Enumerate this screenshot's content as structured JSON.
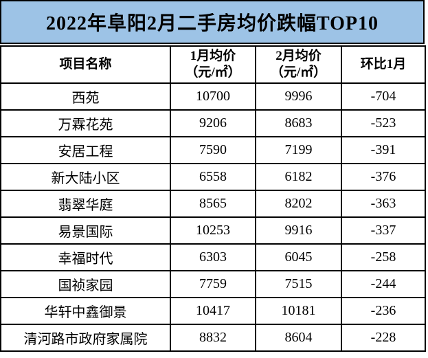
{
  "title": {
    "text": "2022年阜阳2月二手房均价跌幅TOP10"
  },
  "colors": {
    "title_bg": "#9DC3E6",
    "border": "#000000",
    "cell_bg": "#FFFFFF",
    "text": "#000000"
  },
  "chart_data": {
    "type": "table",
    "title": "2022年阜阳2月二手房均价跌幅TOP10",
    "columns": [
      "项目名称",
      "1月均价（元/㎡）",
      "2月均价（元/㎡）",
      "环比1月"
    ],
    "header_lines": [
      {
        "line1": "项目名称",
        "line2": ""
      },
      {
        "line1": "1月均价",
        "line2": "（元/㎡）"
      },
      {
        "line1": "2月均价",
        "line2": "（元/㎡）"
      },
      {
        "line1": "环比1月",
        "line2": ""
      }
    ],
    "rows": [
      {
        "name": "西苑",
        "jan_price": "10700",
        "feb_price": "9996",
        "mom_change": "-704"
      },
      {
        "name": "万霖花苑",
        "jan_price": "9206",
        "feb_price": "8683",
        "mom_change": "-523"
      },
      {
        "name": "安居工程",
        "jan_price": "7590",
        "feb_price": "7199",
        "mom_change": "-391"
      },
      {
        "name": "新大陆小区",
        "jan_price": "6558",
        "feb_price": "6182",
        "mom_change": "-376"
      },
      {
        "name": "翡翠华庭",
        "jan_price": "8565",
        "feb_price": "8202",
        "mom_change": "-363"
      },
      {
        "name": "易景国际",
        "jan_price": "10253",
        "feb_price": "9916",
        "mom_change": "-337"
      },
      {
        "name": "幸福时代",
        "jan_price": "6303",
        "feb_price": "6045",
        "mom_change": "-258"
      },
      {
        "name": "国祯家园",
        "jan_price": "7759",
        "feb_price": "7515",
        "mom_change": "-244"
      },
      {
        "name": "华轩中鑫御景",
        "jan_price": "10417",
        "feb_price": "10181",
        "mom_change": "-236"
      },
      {
        "name": "清河路市政府家属院",
        "jan_price": "8832",
        "feb_price": "8604",
        "mom_change": "-228"
      }
    ]
  }
}
